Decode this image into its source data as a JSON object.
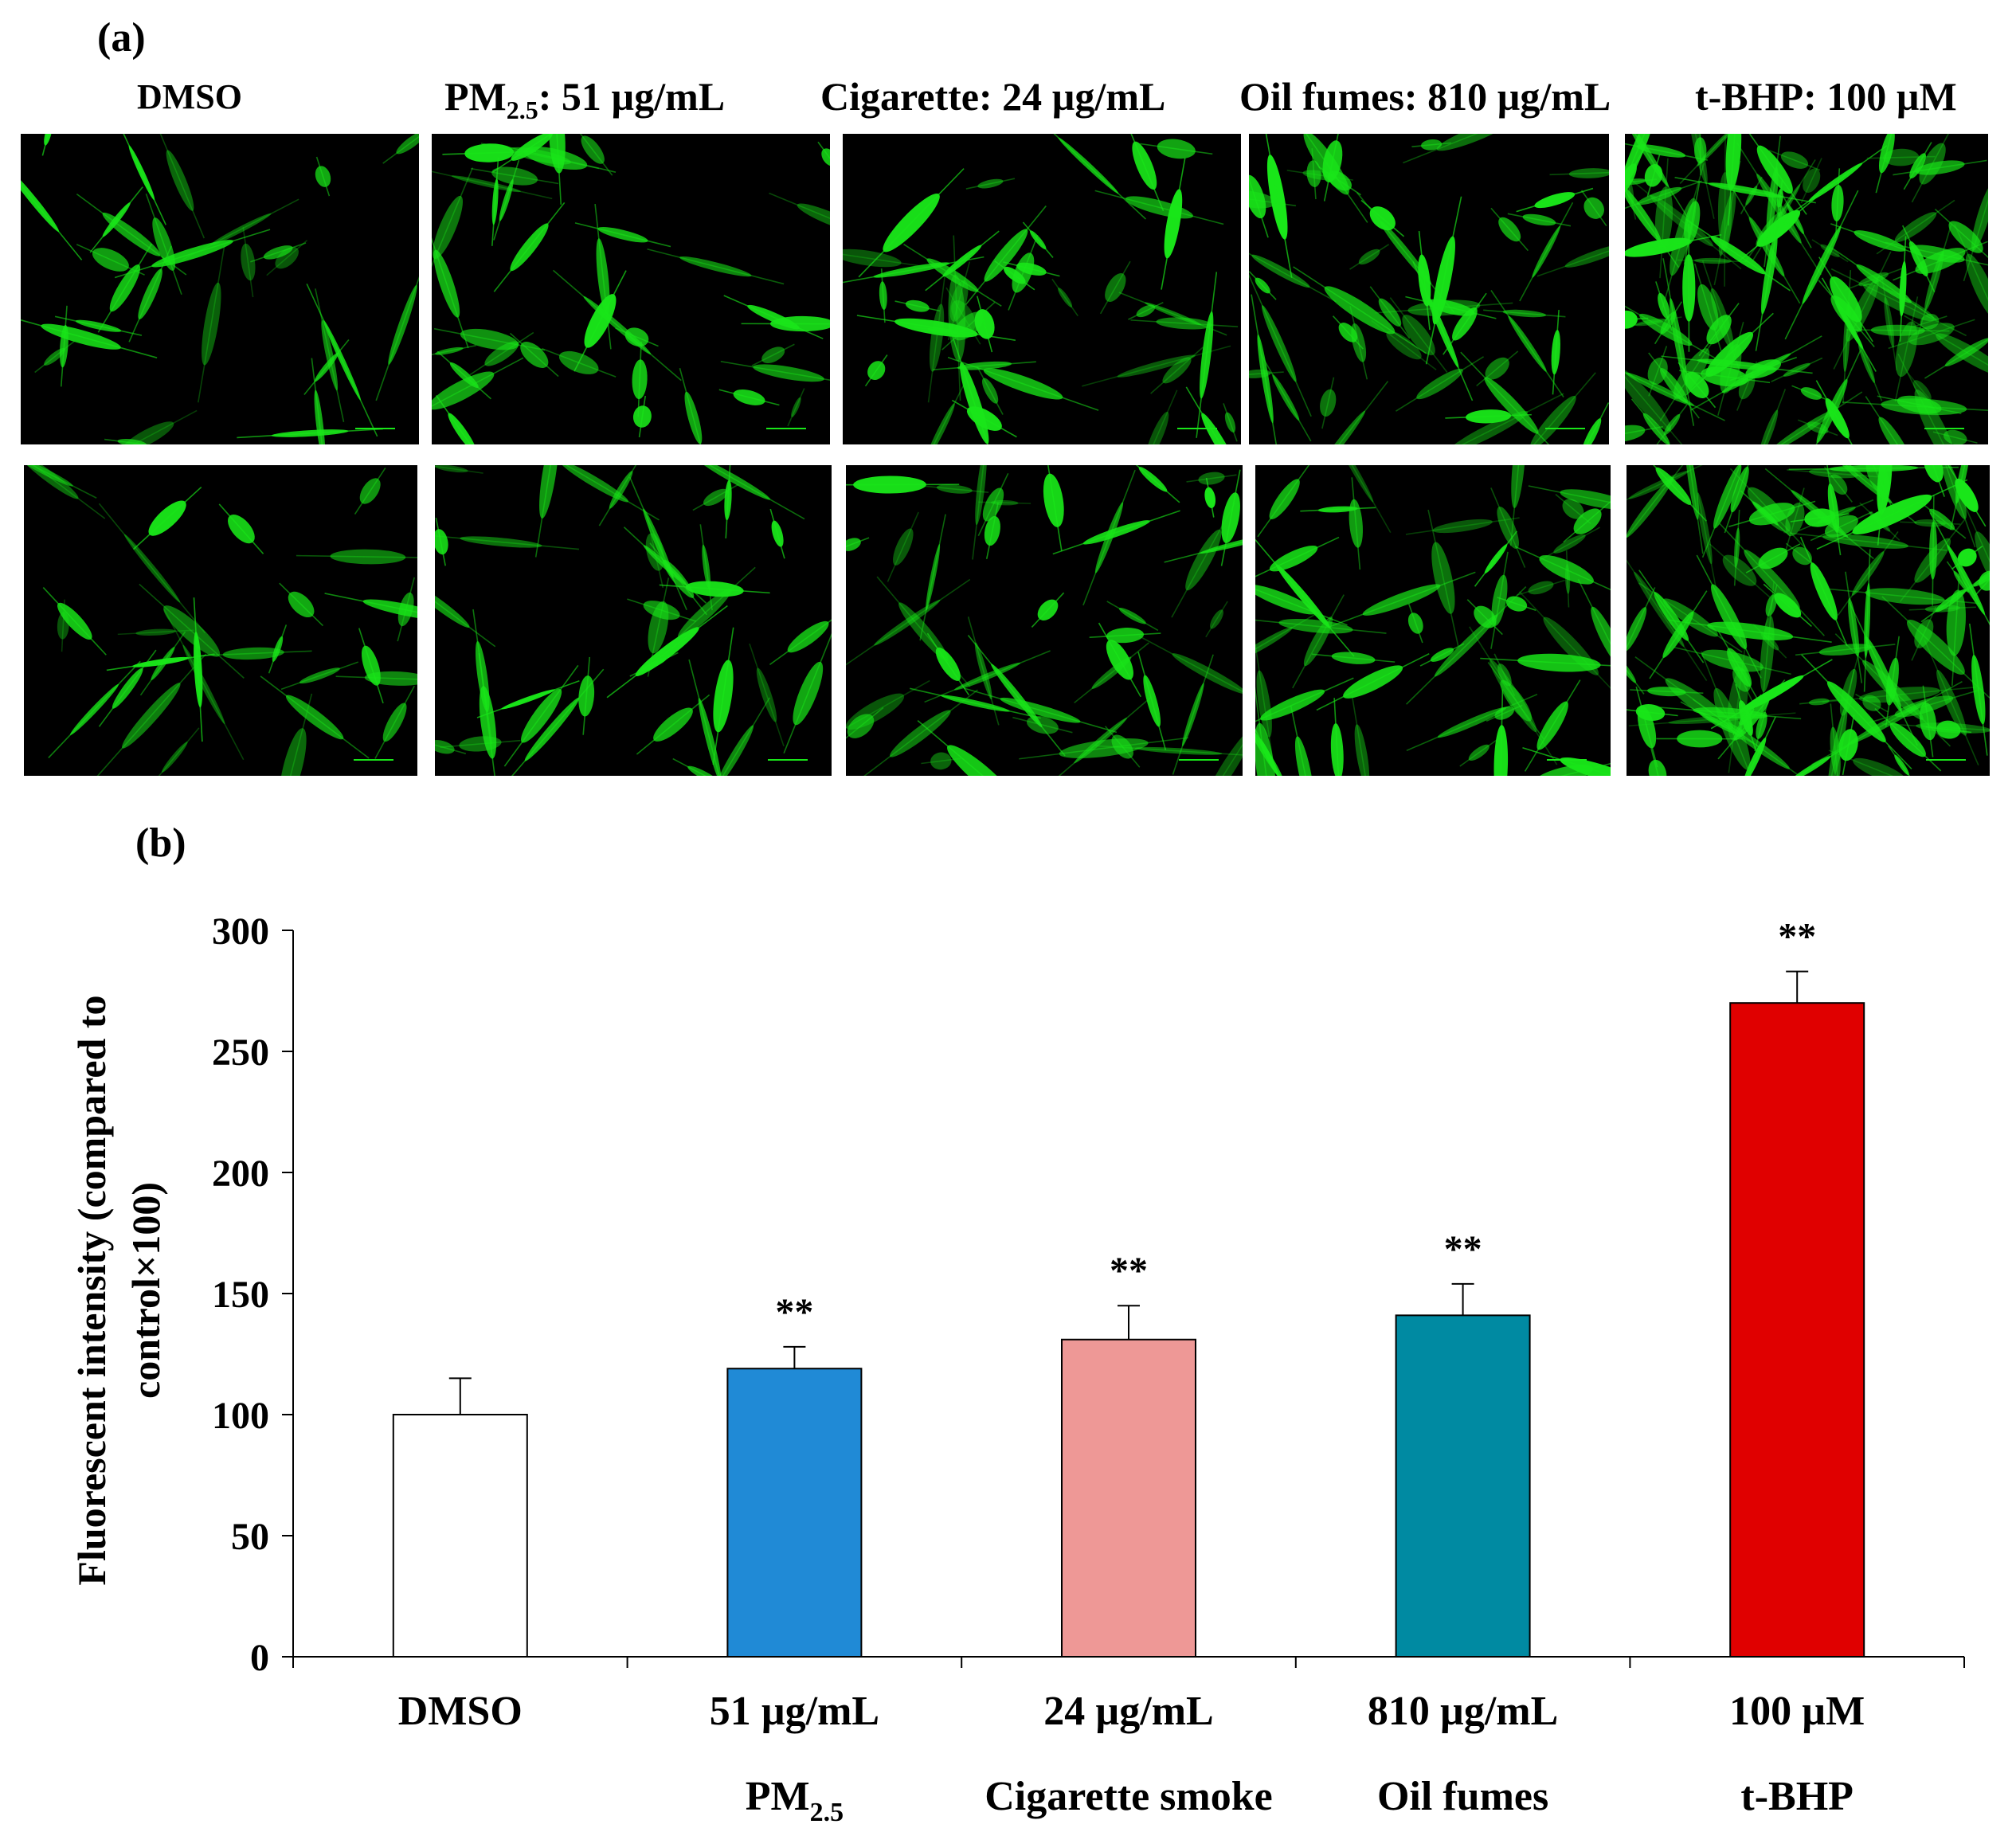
{
  "panel_a": {
    "label": "(a)",
    "columns": [
      {
        "title": "DMSO",
        "sub": "",
        "tail": ""
      },
      {
        "title": "PM",
        "sub": "2.5",
        "tail": ": 51 µg/mL"
      },
      {
        "title": "Cigarette: 24 µg/mL",
        "sub": "",
        "tail": ""
      },
      {
        "title": "Oil fumes: 810 µg/mL",
        "sub": "",
        "tail": ""
      },
      {
        "title": "t-BHP: 100 µM",
        "sub": "",
        "tail": ""
      }
    ],
    "fluorescence_color": "#19e619"
  },
  "chart_data": {
    "type": "bar",
    "panel_label": "(b)",
    "ylabel_line1": "Fluorescent intensity (compared to",
    "ylabel_line2": "control×100)",
    "ylim": [
      0,
      300
    ],
    "yticks": [
      0,
      50,
      100,
      150,
      200,
      250,
      300
    ],
    "categories": [
      "DMSO",
      "51 µg/mL",
      "24 µg/mL",
      "810  µg/mL",
      "100 µM"
    ],
    "group_labels": [
      {
        "main": "",
        "sub": ""
      },
      {
        "main": "PM",
        "sub": "2.5"
      },
      {
        "main": "Cigarette smoke",
        "sub": ""
      },
      {
        "main": "Oil fumes",
        "sub": ""
      },
      {
        "main": "t-BHP",
        "sub": ""
      }
    ],
    "values": [
      100,
      119,
      131,
      141,
      270
    ],
    "errors": [
      15,
      9,
      14,
      13,
      13
    ],
    "significance": [
      "",
      "**",
      "**",
      "**",
      "**"
    ],
    "colors": [
      "#ffffff",
      "#208ad6",
      "#ee9896",
      "#008aa2",
      "#e00000"
    ]
  }
}
